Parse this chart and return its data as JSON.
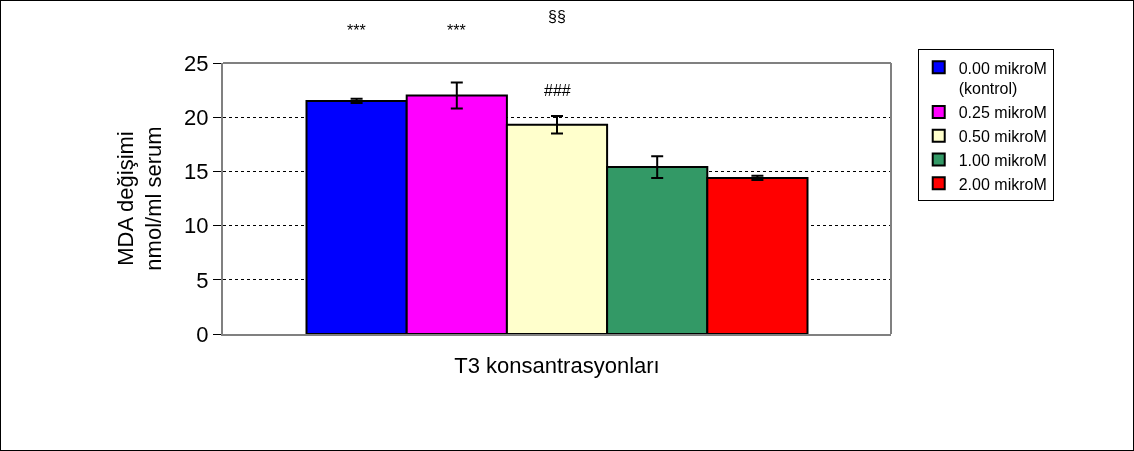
{
  "chart_data": {
    "type": "bar",
    "xlabel": "T3 konsantrasyonları",
    "ylabel": "MDA değişimi\nnmol/ml serum",
    "categories": [
      null
    ],
    "series": [
      {
        "name": "0.00 mikroM\n(kontrol)",
        "color": "#0000ff",
        "values": [
          21.5
        ],
        "errors": [
          0.2
        ]
      },
      {
        "name": "0.25 mikroM",
        "color": "#ff00ff",
        "values": [
          22.0
        ],
        "errors": [
          1.2
        ]
      },
      {
        "name": "0.50 mikroM",
        "color": "#ffffcc",
        "values": [
          19.3
        ],
        "errors": [
          0.8
        ]
      },
      {
        "name": "1.00 mikroM",
        "color": "#339966",
        "values": [
          15.4
        ],
        "errors": [
          1.0
        ]
      },
      {
        "name": "2.00 mikroM",
        "color": "#ff0000",
        "values": [
          14.4
        ],
        "errors": [
          0.2
        ]
      }
    ],
    "annotations": [
      "***",
      "***",
      "§§",
      "###"
    ],
    "ylim": [
      0,
      25
    ],
    "yticks": [
      0,
      5,
      10,
      15,
      20,
      25
    ],
    "grid": "y",
    "legend": "right"
  }
}
